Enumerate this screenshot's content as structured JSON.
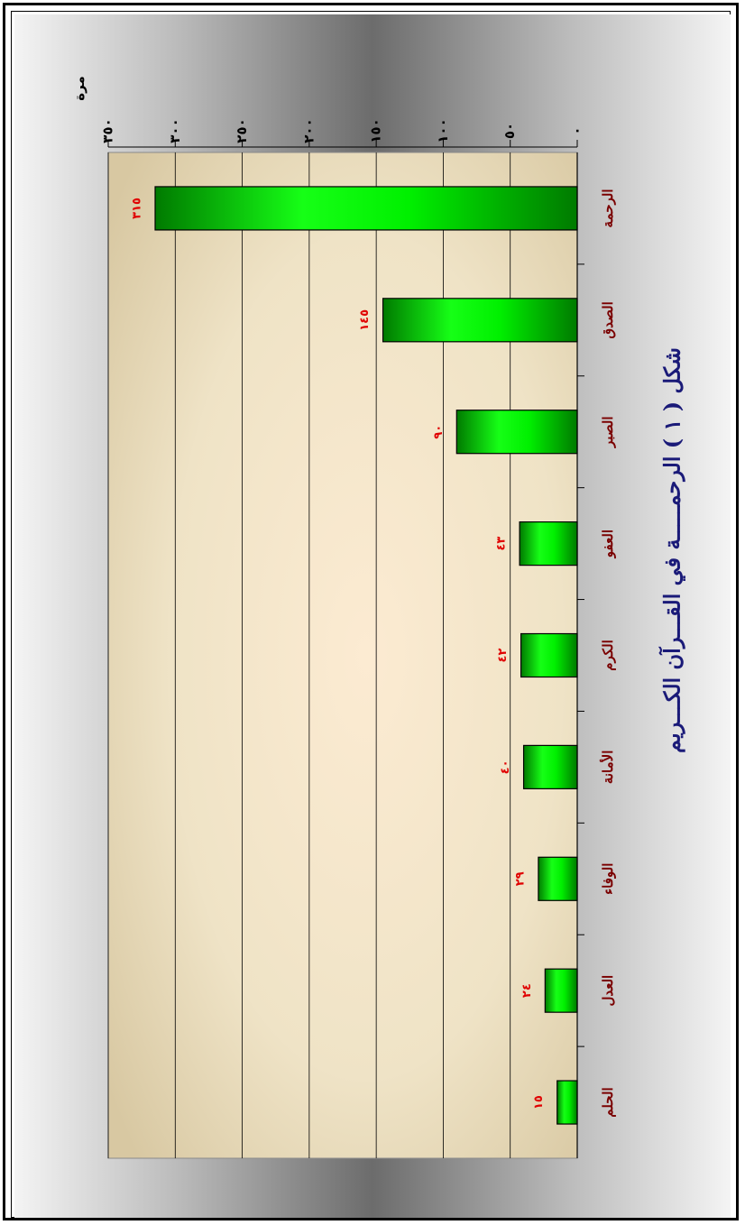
{
  "chart_data": {
    "type": "bar",
    "title": "شكل ( ١ ) الرحمـــــة في القـــرآن الكـــريم",
    "ylabel": "مرة",
    "xlabel": "",
    "orientation": "rotated-90-ccw",
    "categories": [
      "الرحمة",
      "الصدق",
      "الصبر",
      "العفو",
      "الكرم",
      "الأمانة",
      "الوفاء",
      "العدل",
      "الحلم"
    ],
    "values": [
      315,
      145,
      90,
      43,
      42,
      40,
      29,
      24,
      15
    ],
    "value_labels": [
      "٣١٥",
      "١٤٥",
      "٩٠",
      "٤٣",
      "٤٢",
      "٤٠",
      "٢٩",
      "٢٤",
      "١٥"
    ],
    "ylim": [
      0,
      350
    ],
    "y_ticks": [
      0,
      50,
      100,
      150,
      200,
      250,
      300,
      350
    ],
    "y_tick_labels": [
      "٠",
      "٥٠",
      "١٠٠",
      "١٥٠",
      "٢٠٠",
      "٢٥٠",
      "٣٠٠",
      "٣٥٠"
    ],
    "grid": true,
    "legend": "none",
    "colors": {
      "bar_fill": "#00e600",
      "bar_stroke": "#000000",
      "value_label": "#e00000",
      "category_label": "#7a0000",
      "title": "#1a1a78",
      "plot_bg": "#f4e6c8"
    }
  }
}
